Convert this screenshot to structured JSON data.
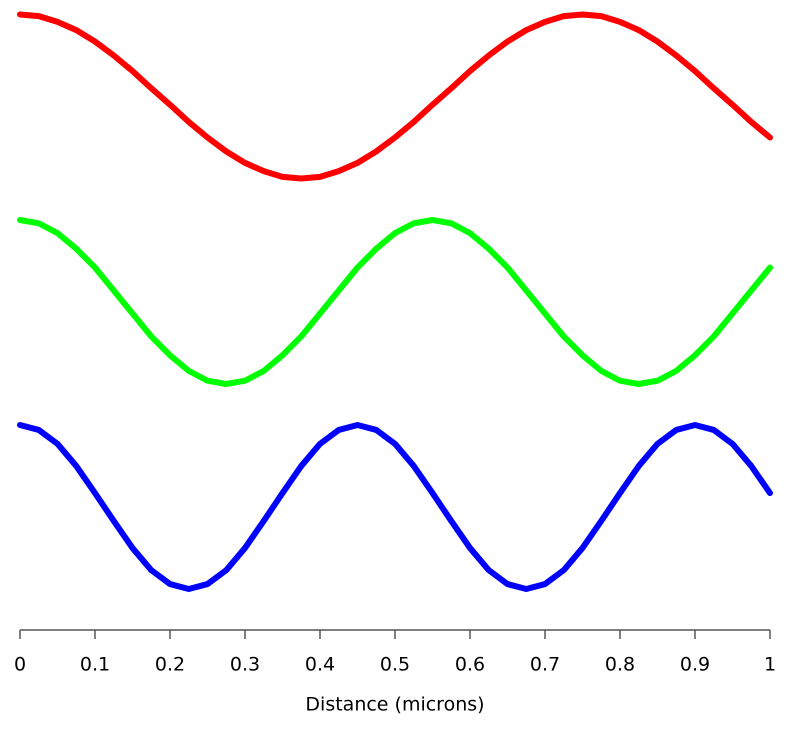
{
  "chart_data": {
    "type": "line",
    "xlabel": "Distance (microns)",
    "x": [
      0,
      0.025,
      0.05,
      0.075,
      0.1,
      0.125,
      0.15,
      0.175,
      0.2,
      0.225,
      0.25,
      0.275,
      0.3,
      0.325,
      0.35,
      0.375,
      0.4,
      0.425,
      0.45,
      0.475,
      0.5,
      0.525,
      0.55,
      0.575,
      0.6,
      0.625,
      0.65,
      0.675,
      0.7,
      0.725,
      0.75,
      0.775,
      0.8,
      0.825,
      0.85,
      0.875,
      0.9,
      0.925,
      0.95,
      0.975,
      1
    ],
    "xlim": [
      0,
      1
    ],
    "xticks": [
      0,
      0.1,
      0.2,
      0.3,
      0.4,
      0.5,
      0.6,
      0.7,
      0.8,
      0.9,
      1
    ],
    "ylim": [
      -1,
      1
    ],
    "series": [
      {
        "color": "#ff0000",
        "values": [
          1,
          0.98,
          0.91,
          0.81,
          0.67,
          0.5,
          0.31,
          0.1,
          -0.1,
          -0.31,
          -0.5,
          -0.67,
          -0.81,
          -0.91,
          -0.98,
          -1,
          -0.98,
          -0.91,
          -0.81,
          -0.67,
          -0.5,
          -0.31,
          -0.1,
          0.1,
          0.31,
          0.5,
          0.67,
          0.81,
          0.91,
          0.98,
          1,
          0.98,
          0.91,
          0.81,
          0.67,
          0.5,
          0.31,
          0.1,
          -0.1,
          -0.31,
          -0.5
        ]
      },
      {
        "color": "#00ff00",
        "values": [
          1,
          0.96,
          0.84,
          0.65,
          0.42,
          0.14,
          -0.14,
          -0.42,
          -0.65,
          -0.84,
          -0.96,
          -1,
          -0.96,
          -0.84,
          -0.65,
          -0.42,
          -0.14,
          0.14,
          0.42,
          0.65,
          0.84,
          0.96,
          1,
          0.96,
          0.84,
          0.65,
          0.42,
          0.14,
          -0.14,
          -0.42,
          -0.65,
          -0.84,
          -0.96,
          -1,
          -0.96,
          -0.84,
          -0.65,
          -0.42,
          -0.14,
          0.14,
          0.42
        ]
      },
      {
        "color": "#0000ff",
        "values": [
          1,
          0.94,
          0.77,
          0.5,
          0.17,
          -0.17,
          -0.5,
          -0.77,
          -0.94,
          -1,
          -0.94,
          -0.77,
          -0.5,
          -0.17,
          0.17,
          0.5,
          0.77,
          0.94,
          1,
          0.94,
          0.77,
          0.5,
          0.17,
          -0.17,
          -0.5,
          -0.77,
          -0.94,
          -1,
          -0.94,
          -0.77,
          -0.5,
          -0.17,
          0.17,
          0.5,
          0.77,
          0.94,
          1,
          0.94,
          0.77,
          0.5,
          0.17
        ]
      }
    ]
  }
}
